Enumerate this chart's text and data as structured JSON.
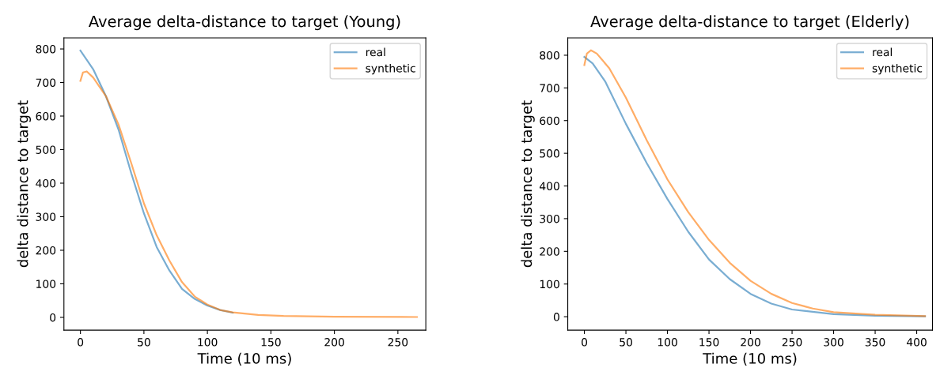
{
  "chart_data": [
    {
      "type": "line",
      "title": "Average delta-distance to target (Young)",
      "xlabel": "Time (10 ms)",
      "ylabel": "delta distance to target",
      "xlim": [
        -13,
        272
      ],
      "ylim": [
        -38,
        833
      ],
      "xticks": [
        0,
        50,
        100,
        150,
        200,
        250
      ],
      "yticks": [
        0,
        100,
        200,
        300,
        400,
        500,
        600,
        700,
        800
      ],
      "legend": "top right",
      "grid": false,
      "series": [
        {
          "name": "real",
          "color": "#79add2",
          "x": [
            0,
            10,
            20,
            30,
            40,
            50,
            60,
            70,
            80,
            90,
            100,
            110,
            120
          ],
          "values": [
            795,
            740,
            660,
            560,
            430,
            310,
            210,
            140,
            85,
            55,
            35,
            22,
            14
          ]
        },
        {
          "name": "synthetic",
          "color": "#ffad66",
          "x": [
            0,
            2,
            5,
            10,
            20,
            30,
            40,
            50,
            60,
            70,
            80,
            90,
            100,
            110,
            120,
            140,
            160,
            200,
            265
          ],
          "values": [
            705,
            730,
            733,
            715,
            660,
            575,
            460,
            340,
            245,
            170,
            105,
            62,
            38,
            22,
            15,
            7,
            4,
            2,
            1
          ]
        }
      ]
    },
    {
      "type": "line",
      "title": "Average delta-distance to target (Elderly)",
      "xlabel": "Time (10 ms)",
      "ylabel": "delta distance to target",
      "xlim": [
        -20,
        419
      ],
      "ylim": [
        -41,
        853
      ],
      "xticks": [
        0,
        50,
        100,
        150,
        200,
        250,
        300,
        350,
        400
      ],
      "yticks": [
        0,
        100,
        200,
        300,
        400,
        500,
        600,
        700,
        800
      ],
      "legend": "top right",
      "grid": false,
      "series": [
        {
          "name": "real",
          "color": "#79add2",
          "x": [
            0,
            10,
            25,
            50,
            75,
            100,
            125,
            150,
            175,
            200,
            225,
            250,
            300,
            350,
            410
          ],
          "values": [
            795,
            775,
            720,
            590,
            470,
            360,
            260,
            175,
            115,
            70,
            40,
            22,
            8,
            3,
            1
          ]
        },
        {
          "name": "synthetic",
          "color": "#ffad66",
          "x": [
            0,
            3,
            8,
            15,
            30,
            50,
            75,
            100,
            125,
            150,
            175,
            200,
            225,
            250,
            275,
            300,
            350,
            410
          ],
          "values": [
            770,
            805,
            815,
            805,
            760,
            670,
            540,
            420,
            320,
            235,
            165,
            110,
            70,
            42,
            25,
            14,
            6,
            2
          ]
        }
      ]
    }
  ]
}
